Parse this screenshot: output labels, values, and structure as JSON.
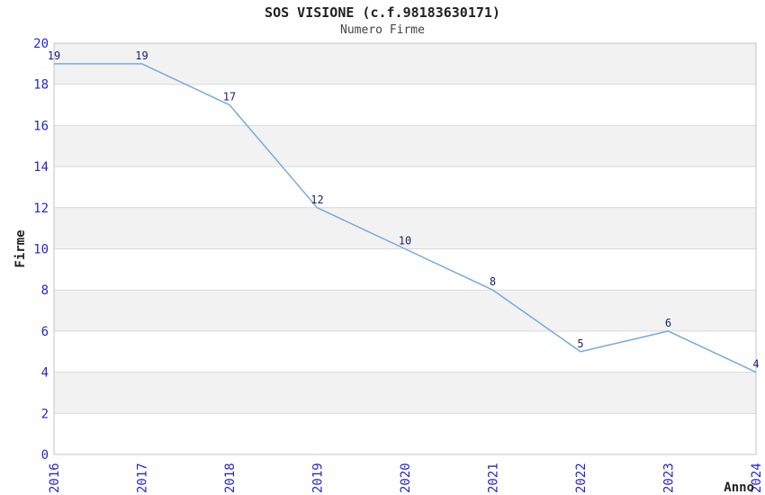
{
  "chart_data": {
    "type": "line",
    "title": "SOS VISIONE (c.f.98183630171)",
    "subtitle": "Numero Firme",
    "xlabel": "Anno",
    "ylabel": "Firme",
    "x": [
      2016,
      2017,
      2018,
      2019,
      2020,
      2021,
      2022,
      2023,
      2024
    ],
    "values": [
      19,
      19,
      17,
      12,
      10,
      8,
      5,
      6,
      4
    ],
    "ylim": [
      0,
      20
    ],
    "ytick_step": 2,
    "data_labels_visible": true,
    "legend": "none",
    "grid": "horizontal-bands-every-2-units",
    "colors": {
      "line": "#76aade",
      "data_label": "#1c1c78",
      "tick_label": "#2626cc",
      "axis_title": "#222222",
      "band_fill": "#f2f2f2",
      "gridline": "#d9d9d9",
      "plot_border": "#c4c4c4",
      "background": "#ffffff"
    }
  }
}
